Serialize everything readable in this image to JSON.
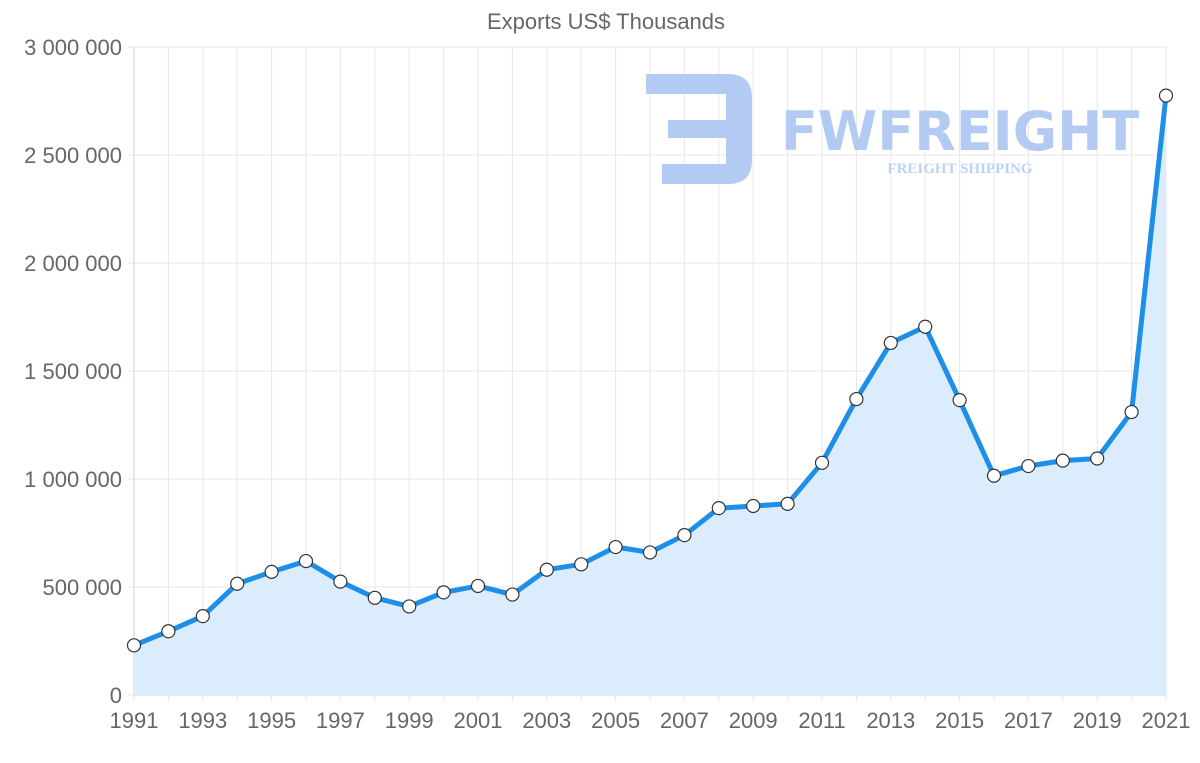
{
  "chart_data": {
    "type": "area",
    "title": "Exports US$ Thousands",
    "xlabel": "",
    "ylabel": "",
    "ylim": [
      0,
      3000000
    ],
    "y_ticks": [
      0,
      500000,
      1000000,
      1500000,
      2000000,
      2500000,
      3000000
    ],
    "y_tick_labels": [
      "0",
      "500 000",
      "1 000 000",
      "1 500 000",
      "2 000 000",
      "2 500 000",
      "3 000 000"
    ],
    "x_tick_labels": [
      "1991",
      "1993",
      "1995",
      "1997",
      "1999",
      "2001",
      "2003",
      "2005",
      "2007",
      "2009",
      "2011",
      "2013",
      "2015",
      "2017",
      "2019",
      "2021"
    ],
    "grid": true,
    "legend": "none",
    "series": [
      {
        "name": "Exports US$ Thousands",
        "color": "#1e8fe8",
        "fill": "#dbedfc",
        "x": [
          1991,
          1992,
          1993,
          1994,
          1995,
          1996,
          1997,
          1998,
          1999,
          2000,
          2001,
          2002,
          2003,
          2004,
          2005,
          2006,
          2007,
          2008,
          2009,
          2010,
          2011,
          2012,
          2013,
          2014,
          2015,
          2016,
          2017,
          2018,
          2019,
          2020,
          2021
        ],
        "values": [
          230000,
          295000,
          365000,
          515000,
          570000,
          620000,
          525000,
          450000,
          410000,
          475000,
          505000,
          465000,
          580000,
          605000,
          685000,
          660000,
          740000,
          865000,
          875000,
          885000,
          1075000,
          1370000,
          1630000,
          1705000,
          1365000,
          1015000,
          1060000,
          1085000,
          1095000,
          1310000,
          2775000
        ]
      }
    ]
  },
  "watermark": {
    "brand": "FWFREIGHT",
    "tagline": "FREIGHT SHIPPING",
    "color": "#b3cbf3",
    "tagline_color": "#bdd1f5"
  }
}
